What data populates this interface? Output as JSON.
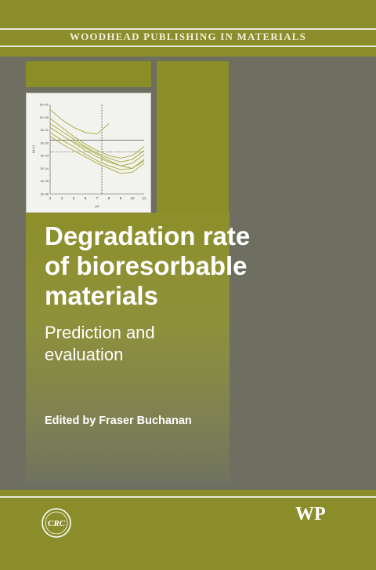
{
  "series_label": "WOODHEAD PUBLISHING IN MATERIALS",
  "title_lines": [
    "Degradation rate",
    "of bioresorbable",
    "materials"
  ],
  "subtitle_lines": [
    "Prediction and",
    "evaluation"
  ],
  "editor_line": "Edited by Fraser Buchanan",
  "publisher_logo": "WP",
  "crc_logo": "CRC",
  "colors": {
    "olive": "#8a8d2a",
    "grey": "#6e6f61",
    "text": "#ffffff"
  },
  "chart_data": {
    "type": "line",
    "xlabel": "pH",
    "ylabel": "k(h-1)",
    "x": [
      3,
      4,
      5,
      6,
      7,
      8,
      9,
      10,
      11
    ],
    "ytick_labels": [
      "1E+01",
      "1E+00",
      "1E-01",
      "1E-02",
      "1E-03",
      "1E-04",
      "1E-05",
      "1E-06"
    ],
    "ylim_log10": [
      -6,
      1
    ],
    "xlim": [
      3,
      11
    ],
    "reference_lines": [
      {
        "style": "solid",
        "y_log10": -1.8
      },
      {
        "style": "dashed",
        "y_log10": -2.7
      },
      {
        "style": "dashed",
        "x": 7.4
      }
    ],
    "series": [
      {
        "x": [
          3,
          4,
          5,
          6,
          7,
          8
        ],
        "y_log10": [
          0.6,
          -0.2,
          -0.8,
          -1.2,
          -1.3,
          -0.5
        ]
      },
      {
        "x": [
          3,
          4,
          5,
          6,
          7,
          8,
          9,
          10,
          11
        ],
        "y_log10": [
          -0.1,
          -0.8,
          -1.5,
          -2.1,
          -2.6,
          -3.0,
          -3.2,
          -3.0,
          -2.3
        ]
      },
      {
        "x": [
          3,
          4,
          5,
          6,
          7,
          8,
          9,
          10,
          11
        ],
        "y_log10": [
          -0.5,
          -1.1,
          -1.7,
          -2.3,
          -2.8,
          -3.2,
          -3.5,
          -3.3,
          -2.6
        ]
      },
      {
        "x": [
          3,
          4,
          5,
          6,
          7,
          8,
          9,
          10,
          11
        ],
        "y_log10": [
          -0.8,
          -1.4,
          -2.0,
          -2.6,
          -3.1,
          -3.5,
          -3.8,
          -3.6,
          -2.9
        ]
      },
      {
        "x": [
          3,
          4,
          5,
          6,
          7,
          8,
          9,
          10,
          11
        ],
        "y_log10": [
          -1.2,
          -1.8,
          -2.3,
          -2.9,
          -3.4,
          -3.8,
          -4.1,
          -4.0,
          -3.3
        ]
      },
      {
        "x": [
          3,
          4,
          5,
          6,
          7,
          8,
          9,
          10,
          11
        ],
        "y_log10": [
          -1.5,
          -2.1,
          -2.6,
          -3.1,
          -3.6,
          -4.0,
          -4.4,
          -4.3,
          -3.6
        ]
      },
      {
        "x": [
          5,
          6,
          7,
          8,
          9,
          10,
          11
        ],
        "y_log10": [
          -1.9,
          -2.4,
          -2.9,
          -3.4,
          -3.8,
          -4.0,
          -3.4
        ]
      }
    ]
  }
}
